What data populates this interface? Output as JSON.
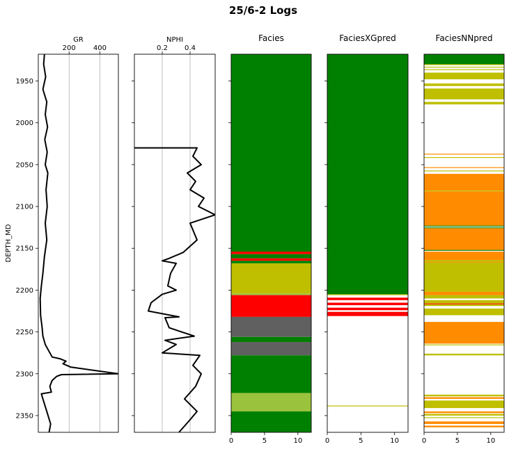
{
  "figure_title": "25/6-2 Logs",
  "colors": {
    "curve": "#000000",
    "grid": "#b0b0b0",
    "facies_green": "#008000",
    "facies_yellow": "#bfbf00",
    "facies_red": "#ff0000",
    "facies_gray": "#606060",
    "facies_lightgreen": "#9ac23c",
    "facies_orange": "#ff8c00"
  },
  "chart_data": [
    {
      "type": "line",
      "title": "",
      "xlabel": "GR",
      "ylabel": "DEPTH_MD",
      "xlim": [
        0,
        520
      ],
      "ylim": [
        2370,
        1918
      ],
      "xticks": [
        200,
        400
      ],
      "yticks": [
        1950,
        2000,
        2050,
        2100,
        2150,
        2200,
        2250,
        2300,
        2350
      ],
      "grid": true,
      "series": [
        {
          "name": "GR",
          "points": [
            [
              40,
              1918
            ],
            [
              35,
              1930
            ],
            [
              48,
              1945
            ],
            [
              30,
              1960
            ],
            [
              55,
              1975
            ],
            [
              45,
              1990
            ],
            [
              60,
              2005
            ],
            [
              42,
              2020
            ],
            [
              58,
              2035
            ],
            [
              45,
              2050
            ],
            [
              62,
              2060
            ],
            [
              50,
              2080
            ],
            [
              58,
              2100
            ],
            [
              45,
              2120
            ],
            [
              55,
              2140
            ],
            [
              40,
              2160
            ],
            [
              30,
              2180
            ],
            [
              20,
              2195
            ],
            [
              12,
              2210
            ],
            [
              15,
              2230
            ],
            [
              25,
              2245
            ],
            [
              30,
              2255
            ],
            [
              45,
              2265
            ],
            [
              75,
              2275
            ],
            [
              90,
              2280
            ],
            [
              140,
              2282
            ],
            [
              180,
              2285
            ],
            [
              160,
              2288
            ],
            [
              210,
              2292
            ],
            [
              520,
              2300
            ],
            [
              150,
              2301
            ],
            [
              120,
              2303
            ],
            [
              90,
              2308
            ],
            [
              75,
              2315
            ],
            [
              85,
              2322
            ],
            [
              20,
              2324
            ],
            [
              30,
              2330
            ],
            [
              55,
              2345
            ],
            [
              80,
              2360
            ],
            [
              70,
              2370
            ]
          ]
        }
      ]
    },
    {
      "type": "line",
      "title": "",
      "xlabel": "NPHI",
      "ylabel": "",
      "xlim": [
        0,
        0.58
      ],
      "ylim": [
        2370,
        1918
      ],
      "xticks": [
        0.2,
        0.4
      ],
      "grid": true,
      "series": [
        {
          "name": "NPHI",
          "points": [
            [
              0.0,
              2030
            ],
            [
              0.45,
              2030
            ],
            [
              0.42,
              2040
            ],
            [
              0.48,
              2050
            ],
            [
              0.38,
              2060
            ],
            [
              0.44,
              2070
            ],
            [
              0.4,
              2080
            ],
            [
              0.5,
              2090
            ],
            [
              0.46,
              2100
            ],
            [
              0.58,
              2110
            ],
            [
              0.4,
              2120
            ],
            [
              0.45,
              2140
            ],
            [
              0.35,
              2155
            ],
            [
              0.25,
              2162
            ],
            [
              0.2,
              2165
            ],
            [
              0.3,
              2168
            ],
            [
              0.26,
              2180
            ],
            [
              0.24,
              2195
            ],
            [
              0.3,
              2200
            ],
            [
              0.2,
              2205
            ],
            [
              0.12,
              2215
            ],
            [
              0.1,
              2225
            ],
            [
              0.32,
              2232
            ],
            [
              0.22,
              2233
            ],
            [
              0.25,
              2245
            ],
            [
              0.43,
              2255
            ],
            [
              0.22,
              2260
            ],
            [
              0.3,
              2265
            ],
            [
              0.2,
              2275
            ],
            [
              0.47,
              2278
            ],
            [
              0.42,
              2290
            ],
            [
              0.48,
              2300
            ],
            [
              0.44,
              2315
            ],
            [
              0.36,
              2330
            ],
            [
              0.45,
              2345
            ],
            [
              0.4,
              2355
            ],
            [
              0.32,
              2370
            ]
          ]
        }
      ]
    },
    {
      "type": "heatmap",
      "title": "Facies",
      "xlim": [
        0,
        12
      ],
      "xticks": [
        0,
        5,
        10
      ],
      "ylim": [
        2370,
        1918
      ],
      "intervals": [
        {
          "top": 1918,
          "base": 2154,
          "color": "#008000"
        },
        {
          "top": 2154,
          "base": 2157,
          "color": "#ff0000"
        },
        {
          "top": 2157,
          "base": 2162,
          "color": "#008000"
        },
        {
          "top": 2162,
          "base": 2165,
          "color": "#ff0000"
        },
        {
          "top": 2165,
          "base": 2168,
          "color": "#008000"
        },
        {
          "top": 2168,
          "base": 2204,
          "color": "#bfbf00"
        },
        {
          "top": 2204,
          "base": 2206,
          "color": "#9ac23c"
        },
        {
          "top": 2206,
          "base": 2232,
          "color": "#ff0000"
        },
        {
          "top": 2232,
          "base": 2256,
          "color": "#606060"
        },
        {
          "top": 2256,
          "base": 2262,
          "color": "#008000"
        },
        {
          "top": 2262,
          "base": 2278,
          "color": "#606060"
        },
        {
          "top": 2278,
          "base": 2323,
          "color": "#008000"
        },
        {
          "top": 2323,
          "base": 2345,
          "color": "#9ac23c"
        },
        {
          "top": 2345,
          "base": 2370,
          "color": "#008000"
        }
      ]
    },
    {
      "type": "heatmap",
      "title": "FaciesXGpred",
      "xlim": [
        0,
        12
      ],
      "xticks": [
        0,
        5,
        10
      ],
      "ylim": [
        2370,
        1918
      ],
      "intervals": [
        {
          "top": 1918,
          "base": 2205,
          "color": "#008000"
        },
        {
          "top": 2205,
          "base": 2206,
          "color": "#bfbf00"
        },
        {
          "top": 2209,
          "base": 2212,
          "color": "#ff0000"
        },
        {
          "top": 2215,
          "base": 2218,
          "color": "#ff0000"
        },
        {
          "top": 2221,
          "base": 2224,
          "color": "#ff0000"
        },
        {
          "top": 2226,
          "base": 2231,
          "color": "#ff0000"
        },
        {
          "top": 2338,
          "base": 2339,
          "color": "#bfbf00"
        }
      ]
    },
    {
      "type": "heatmap",
      "title": "FaciesNNpred",
      "xlim": [
        0,
        12
      ],
      "xticks": [
        0,
        5,
        10
      ],
      "ylim": [
        2370,
        1918
      ],
      "intervals": [
        {
          "top": 1918,
          "base": 1930,
          "color": "#008000"
        },
        {
          "top": 1930,
          "base": 1931,
          "color": "#bfbf00"
        },
        {
          "top": 1933,
          "base": 1934,
          "color": "#bfbf00"
        },
        {
          "top": 1936,
          "base": 1937,
          "color": "#bfbf00"
        },
        {
          "top": 1940,
          "base": 1948,
          "color": "#bfbf00"
        },
        {
          "top": 1953,
          "base": 1956,
          "color": "#bfbf00"
        },
        {
          "top": 1959,
          "base": 1972,
          "color": "#bfbf00"
        },
        {
          "top": 1975,
          "base": 1978,
          "color": "#bfbf00"
        },
        {
          "top": 2037,
          "base": 2038,
          "color": "#ff8c00"
        },
        {
          "top": 2041,
          "base": 2042,
          "color": "#bfbf00"
        },
        {
          "top": 2053,
          "base": 2054,
          "color": "#ff8c00"
        },
        {
          "top": 2057,
          "base": 2058,
          "color": "#bfbf00"
        },
        {
          "top": 2061,
          "base": 2081,
          "color": "#ff8c00"
        },
        {
          "top": 2081,
          "base": 2082,
          "color": "#bfbf00"
        },
        {
          "top": 2082,
          "base": 2123,
          "color": "#ff8c00"
        },
        {
          "top": 2123,
          "base": 2124,
          "color": "#008000"
        },
        {
          "top": 2125,
          "base": 2126,
          "color": "#008000"
        },
        {
          "top": 2126,
          "base": 2152,
          "color": "#ff8c00"
        },
        {
          "top": 2152,
          "base": 2153,
          "color": "#008000"
        },
        {
          "top": 2154,
          "base": 2164,
          "color": "#ff8c00"
        },
        {
          "top": 2164,
          "base": 2166,
          "color": "#bfbf00"
        },
        {
          "top": 2166,
          "base": 2167,
          "color": "#ff8c00"
        },
        {
          "top": 2167,
          "base": 2202,
          "color": "#bfbf00"
        },
        {
          "top": 2202,
          "base": 2206,
          "color": "#ff8c00"
        },
        {
          "top": 2206,
          "base": 2210,
          "color": "#bfbf00"
        },
        {
          "top": 2212,
          "base": 2216,
          "color": "#bfbf00"
        },
        {
          "top": 2216,
          "base": 2217,
          "color": "#ff0000"
        },
        {
          "top": 2217,
          "base": 2219,
          "color": "#bfbf00"
        },
        {
          "top": 2222,
          "base": 2230,
          "color": "#bfbf00"
        },
        {
          "top": 2238,
          "base": 2264,
          "color": "#ff8c00"
        },
        {
          "top": 2265,
          "base": 2266,
          "color": "#bfbf00"
        },
        {
          "top": 2276,
          "base": 2278,
          "color": "#bfbf00"
        },
        {
          "top": 2325,
          "base": 2327,
          "color": "#bfbf00"
        },
        {
          "top": 2328,
          "base": 2330,
          "color": "#ff8c00"
        },
        {
          "top": 2332,
          "base": 2341,
          "color": "#bfbf00"
        },
        {
          "top": 2345,
          "base": 2347,
          "color": "#ff8c00"
        },
        {
          "top": 2348,
          "base": 2350,
          "color": "#bfbf00"
        },
        {
          "top": 2352,
          "base": 2353,
          "color": "#bfbf00"
        },
        {
          "top": 2357,
          "base": 2360,
          "color": "#ff8c00"
        },
        {
          "top": 2362,
          "base": 2364,
          "color": "#ff8c00"
        }
      ]
    }
  ]
}
